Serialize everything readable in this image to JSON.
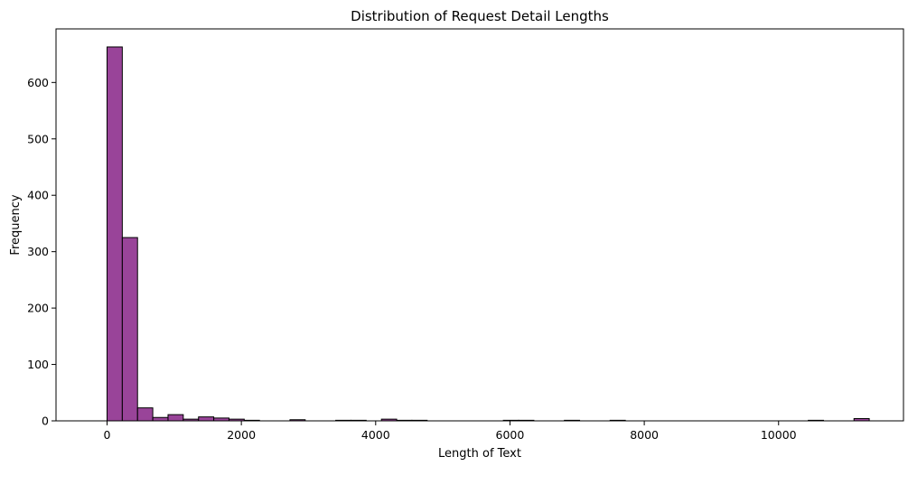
{
  "chart_data": {
    "type": "bar",
    "subtype": "histogram",
    "title": "Distribution of Request Detail Lengths",
    "xlabel": "Length of Text",
    "ylabel": "Frequency",
    "xlim": [
      -760,
      11860
    ],
    "ylim": [
      0,
      695
    ],
    "xticks": [
      0,
      2000,
      4000,
      6000,
      8000,
      10000
    ],
    "xtick_labels": [
      "0",
      "2000",
      "4000",
      "6000",
      "8000",
      "10000"
    ],
    "yticks": [
      0,
      100,
      200,
      300,
      400,
      500,
      600
    ],
    "ytick_labels": [
      "0",
      "100",
      "200",
      "300",
      "400",
      "500",
      "600"
    ],
    "bin_start": 0,
    "bin_width": 227,
    "counts": [
      663,
      325,
      23,
      6,
      11,
      3,
      7,
      5,
      3,
      1,
      0,
      0,
      2,
      0,
      0,
      1,
      1,
      0,
      3,
      1,
      1,
      0,
      0,
      0,
      0,
      0,
      1,
      1,
      0,
      0,
      1,
      0,
      0,
      1,
      0,
      0,
      0,
      0,
      0,
      0,
      0,
      0,
      0,
      0,
      0,
      0,
      1,
      0,
      0,
      4
    ],
    "bar_color": "#8b2a8b",
    "bar_alpha": 0.88,
    "edge_color": "#000000",
    "grid": false,
    "legend": "none"
  }
}
